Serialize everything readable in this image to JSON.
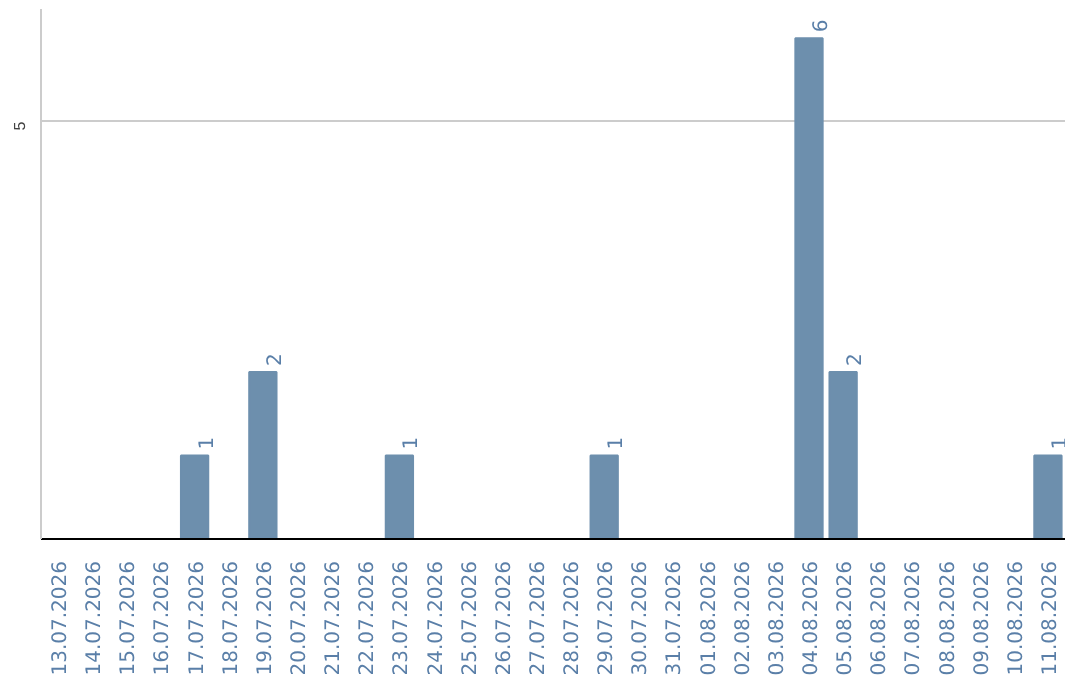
{
  "chart_data": {
    "type": "bar",
    "categories": [
      "13.07.2026",
      "14.07.2026",
      "15.07.2026",
      "16.07.2026",
      "17.07.2026",
      "18.07.2026",
      "19.07.2026",
      "20.07.2026",
      "21.07.2026",
      "22.07.2026",
      "23.07.2026",
      "24.07.2026",
      "25.07.2026",
      "26.07.2026",
      "27.07.2026",
      "28.07.2026",
      "29.07.2026",
      "30.07.2026",
      "31.07.2026",
      "01.08.2026",
      "02.08.2026",
      "03.08.2026",
      "04.08.2026",
      "05.08.2026",
      "06.08.2026",
      "07.08.2026",
      "08.08.2026",
      "09.08.2026",
      "10.08.2026",
      "11.08.2026"
    ],
    "values": [
      0,
      0,
      0,
      0,
      1,
      0,
      2,
      0,
      0,
      0,
      1,
      0,
      0,
      0,
      0,
      0,
      1,
      0,
      0,
      0,
      0,
      0,
      6,
      2,
      0,
      0,
      0,
      0,
      0,
      1
    ],
    "value_labels": [
      null,
      null,
      null,
      null,
      "1",
      null,
      "2",
      null,
      null,
      null,
      "1",
      null,
      null,
      null,
      null,
      null,
      "1",
      null,
      null,
      null,
      null,
      null,
      "6",
      "2",
      null,
      null,
      null,
      null,
      null,
      "1"
    ],
    "color": "#6d8fad",
    "ylim": [
      0,
      6.35
    ],
    "yticks": [
      5
    ],
    "grid": "y"
  }
}
